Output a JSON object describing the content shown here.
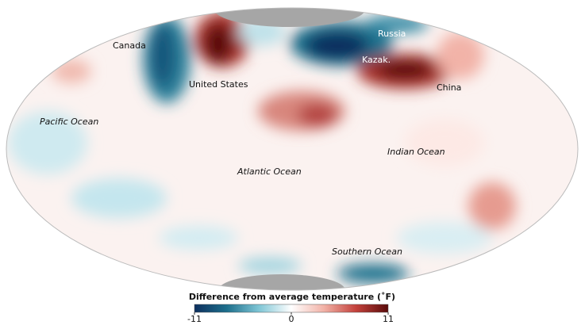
{
  "map": {
    "labels": [
      "Canada",
      "Russia",
      "Kazak.",
      "United States",
      "China",
      "Pacific Ocean",
      "Atlantic Ocean",
      "Indian Ocean",
      "Southern Ocean"
    ]
  },
  "legend": {
    "title": "Difference from average temperature (˚F)",
    "range": [
      -11,
      11
    ],
    "ticks": [
      -11,
      0,
      11
    ],
    "colors": [
      "#0d2f5e",
      "#1d6f8c",
      "#7fc6d6",
      "#ffffff",
      "#f2b3a8",
      "#c4423c",
      "#5a0b0b"
    ]
  }
}
